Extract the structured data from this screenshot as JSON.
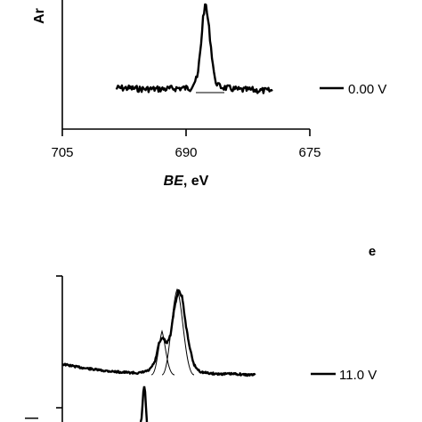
{
  "chart_data": [
    {
      "type": "line",
      "title": "",
      "xlabel_italic": "BE",
      "xlabel_unit": ", eV",
      "ylabel": "Ar",
      "xlim": [
        705,
        675
      ],
      "x_ticks": [
        "705",
        "690",
        "675"
      ],
      "series": [
        {
          "name": "0.00 V",
          "x": [
            698.5,
            697.0,
            695.5,
            694.0,
            692.5,
            691.0,
            689.5,
            688.6,
            688.2,
            687.9,
            687.6,
            687.3,
            686.9,
            686.5,
            686.0,
            685.0,
            683.5,
            682.0,
            680.5,
            679.5
          ],
          "y": [
            0.06,
            0.06,
            0.05,
            0.05,
            0.05,
            0.06,
            0.06,
            0.18,
            0.55,
            0.9,
            1.0,
            0.8,
            0.45,
            0.15,
            0.08,
            0.06,
            0.04,
            0.04,
            0.03,
            0.03
          ]
        }
      ]
    },
    {
      "type": "line",
      "panel_label": "e",
      "title": "",
      "series": [
        {
          "name": "11.0 V",
          "x": [
            0,
            10,
            20,
            30,
            40,
            45,
            48,
            50,
            52,
            54,
            56,
            58,
            60,
            62,
            64,
            66,
            68,
            70,
            72,
            75,
            80,
            85,
            90,
            95,
            100
          ],
          "y": [
            0.12,
            0.08,
            0.05,
            0.03,
            0.02,
            0.05,
            0.15,
            0.35,
            0.42,
            0.35,
            0.45,
            0.75,
            0.95,
            0.88,
            0.55,
            0.3,
            0.12,
            0.06,
            0.03,
            0.02,
            0.01,
            0.01,
            0.01,
            0.0,
            0.0
          ]
        }
      ]
    }
  ]
}
